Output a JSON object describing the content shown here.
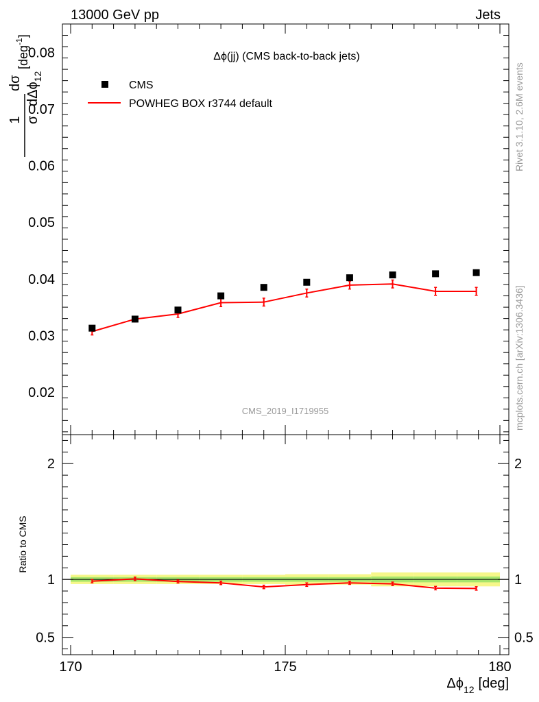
{
  "header": {
    "left": "13000 GeV pp",
    "right": "Jets"
  },
  "side_labels": {
    "rivet": "Rivet 3.1.10,  2.6M events",
    "mcplots": "mcplots.cern.ch [arXiv:1306.3436]"
  },
  "chart_data": {
    "type": "scatter",
    "title": "Δϕ(jj) (CMS back-to-back jets)",
    "watermark": "CMS_2019_I1719955",
    "xlabel": "Δϕ",
    "xlabel_sub": "12",
    "xlabel_unit": "[deg]",
    "ylabel": "1 dσ / σ dΔϕ12 [deg-1]",
    "ratio_ylabel": "Ratio to CMS",
    "xlim": [
      170,
      180
    ],
    "ylim": [
      0.0125,
      0.085
    ],
    "ratio_ylim": [
      0.35,
      2.25
    ],
    "x_ticks": [
      170,
      175,
      180
    ],
    "y_ticks": [
      0.02,
      0.03,
      0.04,
      0.05,
      0.06,
      0.07,
      0.08
    ],
    "y_tick_labels": [
      "0.02",
      "0.03",
      "0.04",
      "0.05",
      "0.06",
      "0.07",
      "0.08"
    ],
    "ratio_ticks": [
      0.5,
      1,
      2
    ],
    "ratio_tick_labels": [
      "0.5",
      "1",
      "2"
    ],
    "x": [
      170.5,
      171.5,
      172.5,
      173.5,
      174.5,
      175.5,
      176.5,
      177.5,
      178.5,
      179.45
    ],
    "series": [
      {
        "name": "CMS",
        "kind": "marker",
        "color": "#000000",
        "values": [
          0.0313,
          0.0329,
          0.0345,
          0.037,
          0.0385,
          0.0394,
          0.0402,
          0.0407,
          0.0409,
          0.0411
        ]
      },
      {
        "name": "POWHEG BOX r3744 default",
        "kind": "line",
        "color": "#ff0000",
        "values": [
          0.0307,
          0.0329,
          0.0338,
          0.0358,
          0.0359,
          0.0375,
          0.0389,
          0.0391,
          0.0378,
          0.0378
        ],
        "errors": [
          0.0006,
          0.0005,
          0.0006,
          0.0007,
          0.0007,
          0.0007,
          0.0007,
          0.0007,
          0.0007,
          0.0007
        ],
        "ratio": [
          0.985,
          1.005,
          0.982,
          0.97,
          0.935,
          0.955,
          0.97,
          0.962,
          0.925,
          0.922
        ],
        "ratio_errors": [
          0.015,
          0.015,
          0.013,
          0.015,
          0.015,
          0.015,
          0.013,
          0.015,
          0.015,
          0.015
        ]
      }
    ],
    "ratio_band": {
      "inner_color": "#a7e56c",
      "outer_color": "#f6f78a",
      "edges": [
        170,
        171,
        172,
        173,
        174,
        175,
        176,
        177,
        178,
        179,
        180
      ],
      "inner_halfwidth": [
        0.02,
        0.02,
        0.02,
        0.02,
        0.02,
        0.02,
        0.02,
        0.025,
        0.025,
        0.025
      ],
      "outer_halfwidth": [
        0.04,
        0.04,
        0.04,
        0.04,
        0.04,
        0.045,
        0.045,
        0.06,
        0.06,
        0.06
      ]
    },
    "legend_position": "top-left",
    "grid": false
  }
}
